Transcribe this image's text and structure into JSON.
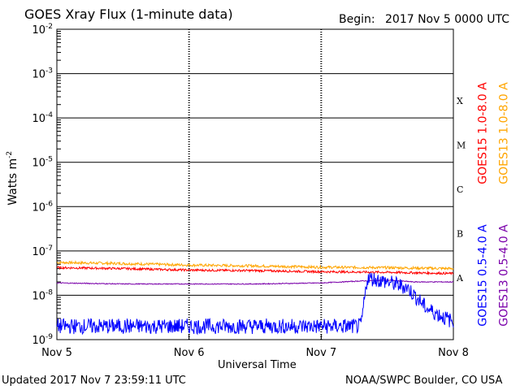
{
  "header": {
    "title": "GOES Xray Flux (1-minute data)",
    "begin_label": "Begin:",
    "begin_value": "2017 Nov 5 0000 UTC"
  },
  "footer": {
    "updated": "Updated 2017 Nov  7 23:59:11 UTC",
    "credit": "NOAA/SWPC Boulder, CO USA"
  },
  "colors": {
    "goes15_long": "#ff0000",
    "goes13_long": "#ffa500",
    "goes15_short": "#0000ff",
    "goes13_short": "#7a00aa",
    "grid": "#000000"
  },
  "chart_data": {
    "type": "line",
    "xlabel": "Universal Time",
    "ylabel_base": "Watts m",
    "ylabel_exp": "-2",
    "scale": "log",
    "ylim": [
      1e-09,
      0.01
    ],
    "xlim": [
      "2017-11-05",
      "2017-11-08"
    ],
    "x_ticks": [
      "Nov 5",
      "Nov 6",
      "Nov 7",
      "Nov 8"
    ],
    "y_ticks": [
      {
        "base": "10",
        "exp": "-2",
        "value": 0.01
      },
      {
        "base": "10",
        "exp": "-3",
        "value": 0.001
      },
      {
        "base": "10",
        "exp": "-4",
        "value": 0.0001
      },
      {
        "base": "10",
        "exp": "-5",
        "value": 1e-05
      },
      {
        "base": "10",
        "exp": "-6",
        "value": 1e-06
      },
      {
        "base": "10",
        "exp": "-7",
        "value": 1e-07
      },
      {
        "base": "10",
        "exp": "-8",
        "value": 1e-08
      },
      {
        "base": "10",
        "exp": "-9",
        "value": 1e-09
      }
    ],
    "flare_classes": [
      {
        "label": "X",
        "value": 0.0001
      },
      {
        "label": "M",
        "value": 1e-05
      },
      {
        "label": "C",
        "value": 1e-06
      },
      {
        "label": "B",
        "value": 1e-07
      },
      {
        "label": "A",
        "value": 1e-08
      }
    ],
    "grid": true,
    "legend_right": [
      {
        "label": "GOES15 1.0-8.0 A",
        "color_key": "goes15_long"
      },
      {
        "label": "GOES13 1.0-8.0 A",
        "color_key": "goes13_long"
      }
    ],
    "legend_right2": [
      {
        "label": "GOES15 0.5-4.0 A",
        "color_key": "goes15_short"
      },
      {
        "label": "GOES13 0.5-4.0 A",
        "color_key": "goes13_short"
      }
    ],
    "series": [
      {
        "key": "goes13_long",
        "days": [
          0,
          0.5,
          1,
          1.5,
          2,
          2.5,
          3
        ],
        "values": [
          5.5e-08,
          5.2e-08,
          4.8e-08,
          4.6e-08,
          4.3e-08,
          4.2e-08,
          4e-08
        ]
      },
      {
        "key": "goes15_long",
        "days": [
          0,
          0.5,
          1,
          1.5,
          2,
          2.5,
          3
        ],
        "values": [
          4.2e-08,
          4e-08,
          3.7e-08,
          3.6e-08,
          3.4e-08,
          3.3e-08,
          3.1e-08
        ]
      },
      {
        "key": "goes13_short",
        "days": [
          0,
          0.5,
          1,
          1.5,
          2,
          2.3,
          2.5,
          2.7,
          3
        ],
        "values": [
          1.9e-08,
          1.8e-08,
          1.8e-08,
          1.8e-08,
          1.9e-08,
          2.1e-08,
          2.2e-08,
          2e-08,
          2e-08
        ]
      },
      {
        "key": "goes15_short",
        "days": [
          0,
          0.5,
          1,
          1.5,
          2,
          2.3,
          2.35,
          2.5,
          2.65,
          2.8,
          3
        ],
        "values": [
          2e-09,
          2e-09,
          2e-09,
          2e-09,
          2e-09,
          2e-09,
          2.5e-08,
          2e-08,
          1.5e-08,
          5e-09,
          2.5e-09
        ]
      }
    ]
  }
}
